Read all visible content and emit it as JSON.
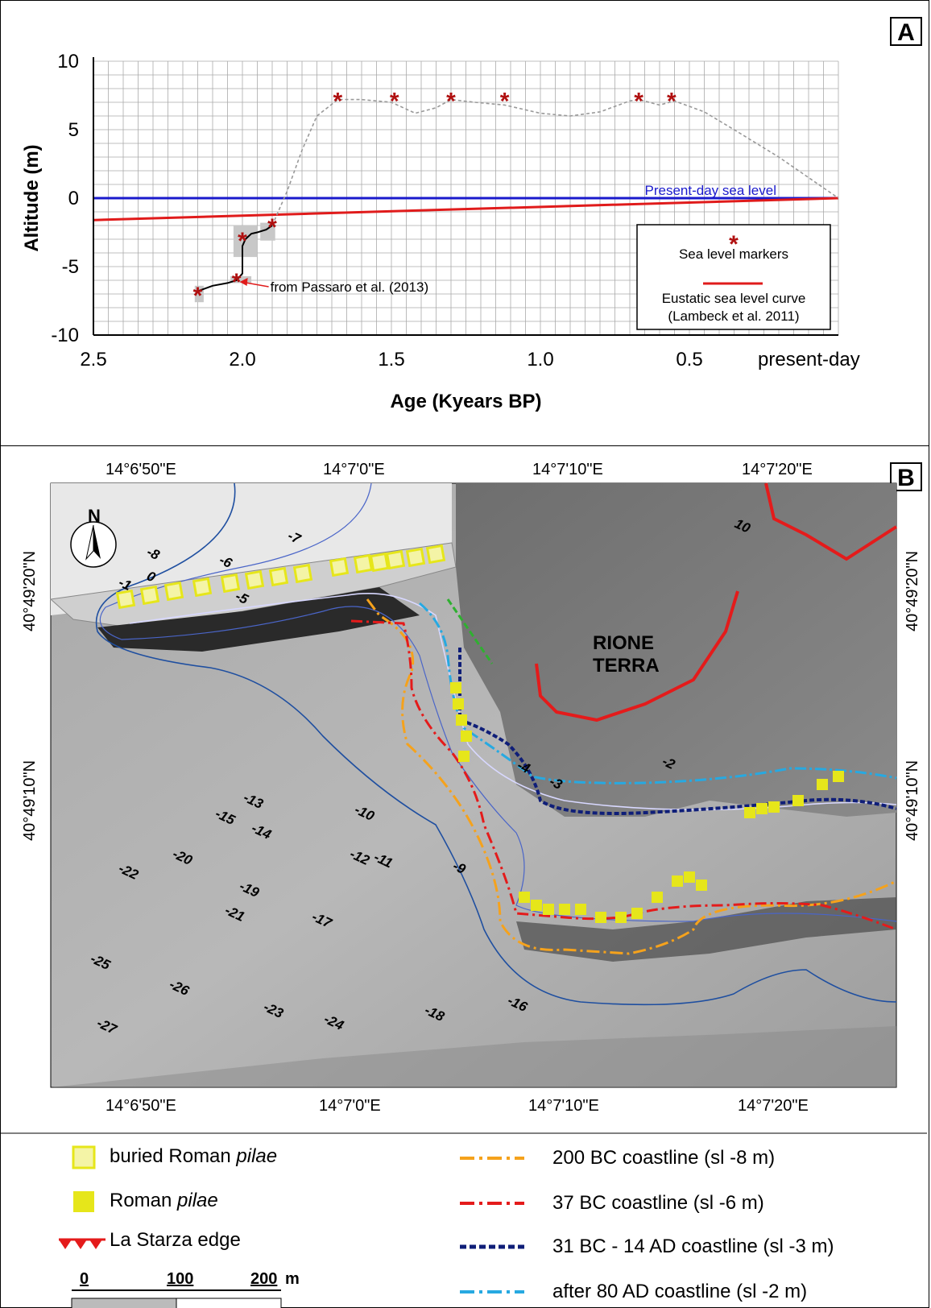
{
  "panel_a": {
    "letter": "A",
    "chart_data": {
      "type": "line",
      "xlabel": "Age (Kyears BP)",
      "ylabel": "Altitude (m)",
      "xlim": [
        2.5,
        0.0
      ],
      "ylim": [
        -10,
        10
      ],
      "x_ticks": [
        {
          "value": 2.5,
          "label": "2.5"
        },
        {
          "value": 2.0,
          "label": "2.0"
        },
        {
          "value": 1.5,
          "label": "1.5"
        },
        {
          "value": 1.0,
          "label": "1.0"
        },
        {
          "value": 0.5,
          "label": "0.5"
        },
        {
          "value": 0.0,
          "label": "present-day"
        }
      ],
      "y_ticks": [
        {
          "value": 10,
          "label": "10"
        },
        {
          "value": 5,
          "label": "5"
        },
        {
          "value": 0,
          "label": "0"
        },
        {
          "value": -5,
          "label": "-5"
        },
        {
          "value": -10,
          "label": "-10"
        }
      ],
      "grid": true,
      "present_day_label": "Present-day sea level",
      "series": [
        {
          "role": "present_day",
          "color": "#1a1acc",
          "x": [
            2.5,
            0.0
          ],
          "y": [
            0,
            0
          ]
        },
        {
          "role": "eustatic",
          "color": "#e01b1b",
          "x": [
            2.5,
            0.0
          ],
          "y": [
            -1.6,
            0
          ]
        },
        {
          "role": "interpolated_dashed",
          "color": "#999999",
          "x": [
            1.9,
            1.85,
            1.8,
            1.75,
            1.68,
            1.6,
            1.5,
            1.42,
            1.35,
            1.3,
            1.22,
            1.12,
            1.0,
            0.9,
            0.8,
            0.7,
            0.67,
            0.6,
            0.55,
            0.45,
            0.35,
            0.2,
            0.0
          ],
          "y": [
            -2,
            0.5,
            3.5,
            6.0,
            7.2,
            7.2,
            7.0,
            6.2,
            6.6,
            7.2,
            7.0,
            6.8,
            6.2,
            6.0,
            6.3,
            7.1,
            7.2,
            6.8,
            7.1,
            6.3,
            5.0,
            3.0,
            0.0
          ]
        },
        {
          "role": "measured_black",
          "color": "#000000",
          "x": [
            2.15,
            2.1,
            2.05,
            2.02,
            2.0,
            2.0,
            1.99,
            1.97,
            1.95,
            1.92,
            1.9
          ],
          "y": [
            -6.8,
            -6.4,
            -6.2,
            -6.0,
            -5.5,
            -3.5,
            -3.0,
            -2.6,
            -2.5,
            -2.3,
            -2.0
          ]
        }
      ],
      "markers": [
        {
          "x": 2.15,
          "y": -7.0
        },
        {
          "x": 2.02,
          "y": -6.0
        },
        {
          "x": 2.0,
          "y": -3.0
        },
        {
          "x": 1.9,
          "y": -2.0
        },
        {
          "x": 1.68,
          "y": 7.2
        },
        {
          "x": 1.49,
          "y": 7.2
        },
        {
          "x": 1.3,
          "y": 7.2
        },
        {
          "x": 1.12,
          "y": 7.2
        },
        {
          "x": 0.67,
          "y": 7.2
        },
        {
          "x": 0.56,
          "y": 7.2
        }
      ],
      "error_boxes": [
        {
          "x0": 2.16,
          "x1": 2.13,
          "y0": -7.6,
          "y1": -6.4
        },
        {
          "x0": 2.04,
          "x1": 1.97,
          "y0": -6.2,
          "y1": -5.7
        },
        {
          "x0": 2.03,
          "x1": 1.95,
          "y0": -4.3,
          "y1": -2.0
        },
        {
          "x0": 1.94,
          "x1": 1.89,
          "y0": -3.1,
          "y1": -1.8
        }
      ],
      "annotation": {
        "text": "from Passaro et al. (2013)",
        "x": 2.02,
        "y": -6.0
      },
      "legend": {
        "placement": "bottom-right",
        "marker_label": "Sea level markers",
        "curve_label_1": "Eustatic sea level curve",
        "curve_label_2": "(Lambeck et al. 2011)"
      }
    }
  },
  "panel_b": {
    "letter": "B",
    "lon_ticks": [
      "14°6'50\"E",
      "14°7'0\"E",
      "14°7'10\"E",
      "14°7'20\"E"
    ],
    "lat_ticks": [
      "40°49'20\"N",
      "40°49'10\"N"
    ],
    "place_label_1": "RIONE",
    "place_label_2": "TERRA",
    "north": "N",
    "depth_labels": [
      "-13",
      "-15",
      "-14",
      "-22",
      "-20",
      "-19",
      "-21",
      "-17",
      "-10",
      "-12",
      "-11",
      "-9",
      "-25",
      "-23",
      "-26",
      "-27",
      "-24",
      "-18",
      "-16",
      "-8",
      "-7",
      "-6",
      "-5",
      "-4",
      "-3",
      "-2",
      "-1",
      "0",
      "10"
    ],
    "legend": {
      "buried_pilae_1": "buried Roman ",
      "buried_pilae_2": "pilae",
      "pilae_1": "Roman ",
      "pilae_2": "pilae",
      "la_starza": "La Starza edge",
      "scale_0": "0",
      "scale_100": "100",
      "scale_200": "200",
      "scale_unit": "m",
      "c200bc": "200 BC coastline (sl -8 m)",
      "c37bc": "37 BC coastline (sl -6 m)",
      "c31bc": "31 BC - 14 AD coastline (sl -3 m)",
      "c80ad": "after 80 AD coastline (sl -2 m)"
    },
    "colors": {
      "c200bc": "#f5a21c",
      "c37bc": "#e41b1b",
      "c31bc": "#0f1e78",
      "c80ad": "#27a9e1",
      "pilae": "#e6e61a",
      "buried": "#f4f4a6",
      "starza": "#e41b1b"
    }
  }
}
